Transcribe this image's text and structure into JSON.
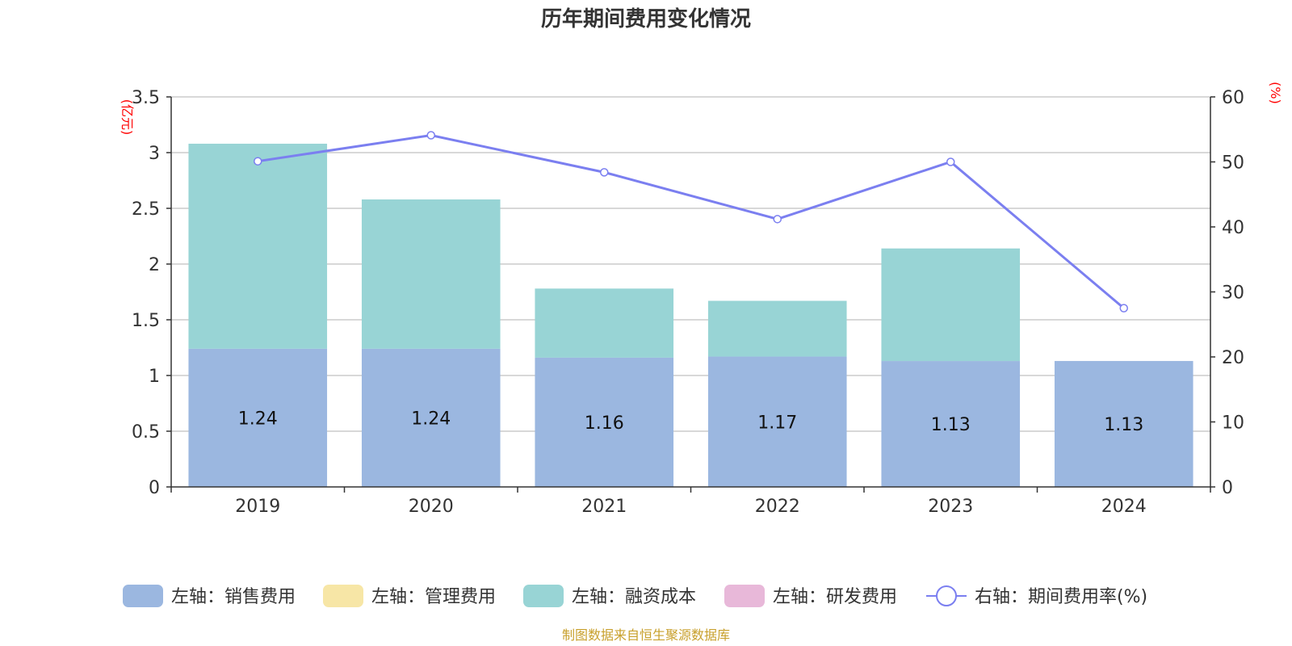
{
  "chart_data": {
    "type": "bar",
    "title": "历年期间费用变化情况",
    "categories": [
      "2019",
      "2020",
      "2021",
      "2022",
      "2023",
      "2024"
    ],
    "left_axis": {
      "unit": "(亿元)",
      "ylim": [
        0,
        3.5
      ],
      "ticks": [
        "0",
        "0.5",
        "1",
        "1.5",
        "2",
        "2.5",
        "3",
        "3.5"
      ]
    },
    "right_axis": {
      "unit": "(%)",
      "ylim": [
        0,
        60
      ],
      "ticks": [
        "0",
        "10",
        "20",
        "30",
        "40",
        "50",
        "60"
      ]
    },
    "series": [
      {
        "name": "左轴：销售费用",
        "axis": "left",
        "kind": "bar",
        "color": "#9bb7e0",
        "values": [
          1.24,
          1.24,
          1.16,
          1.17,
          1.13,
          1.13
        ],
        "labels": [
          "1.24",
          "1.24",
          "1.16",
          "1.17",
          "1.13",
          "1.13"
        ]
      },
      {
        "name": "左轴：管理费用",
        "axis": "left",
        "kind": "bar",
        "color": "#f7e6a6",
        "values": [
          0,
          0,
          0,
          0,
          0,
          0
        ]
      },
      {
        "name": "左轴：融资成本",
        "axis": "left",
        "kind": "bar",
        "color": "#98d4d5",
        "values": [
          1.84,
          1.34,
          0.62,
          0.5,
          1.01,
          0.0
        ]
      },
      {
        "name": "左轴：研发费用",
        "axis": "left",
        "kind": "bar",
        "color": "#e8b8d9",
        "values": [
          0,
          0,
          0,
          0,
          0,
          0
        ]
      },
      {
        "name": "右轴：期间费用率(%)",
        "axis": "right",
        "kind": "line",
        "color": "#7b7ff0",
        "values": [
          50.1,
          54.1,
          48.4,
          41.2,
          50.0,
          27.5
        ]
      }
    ],
    "grid": true,
    "legend_position": "bottom"
  },
  "source_note": "制图数据来自恒生聚源数据库"
}
